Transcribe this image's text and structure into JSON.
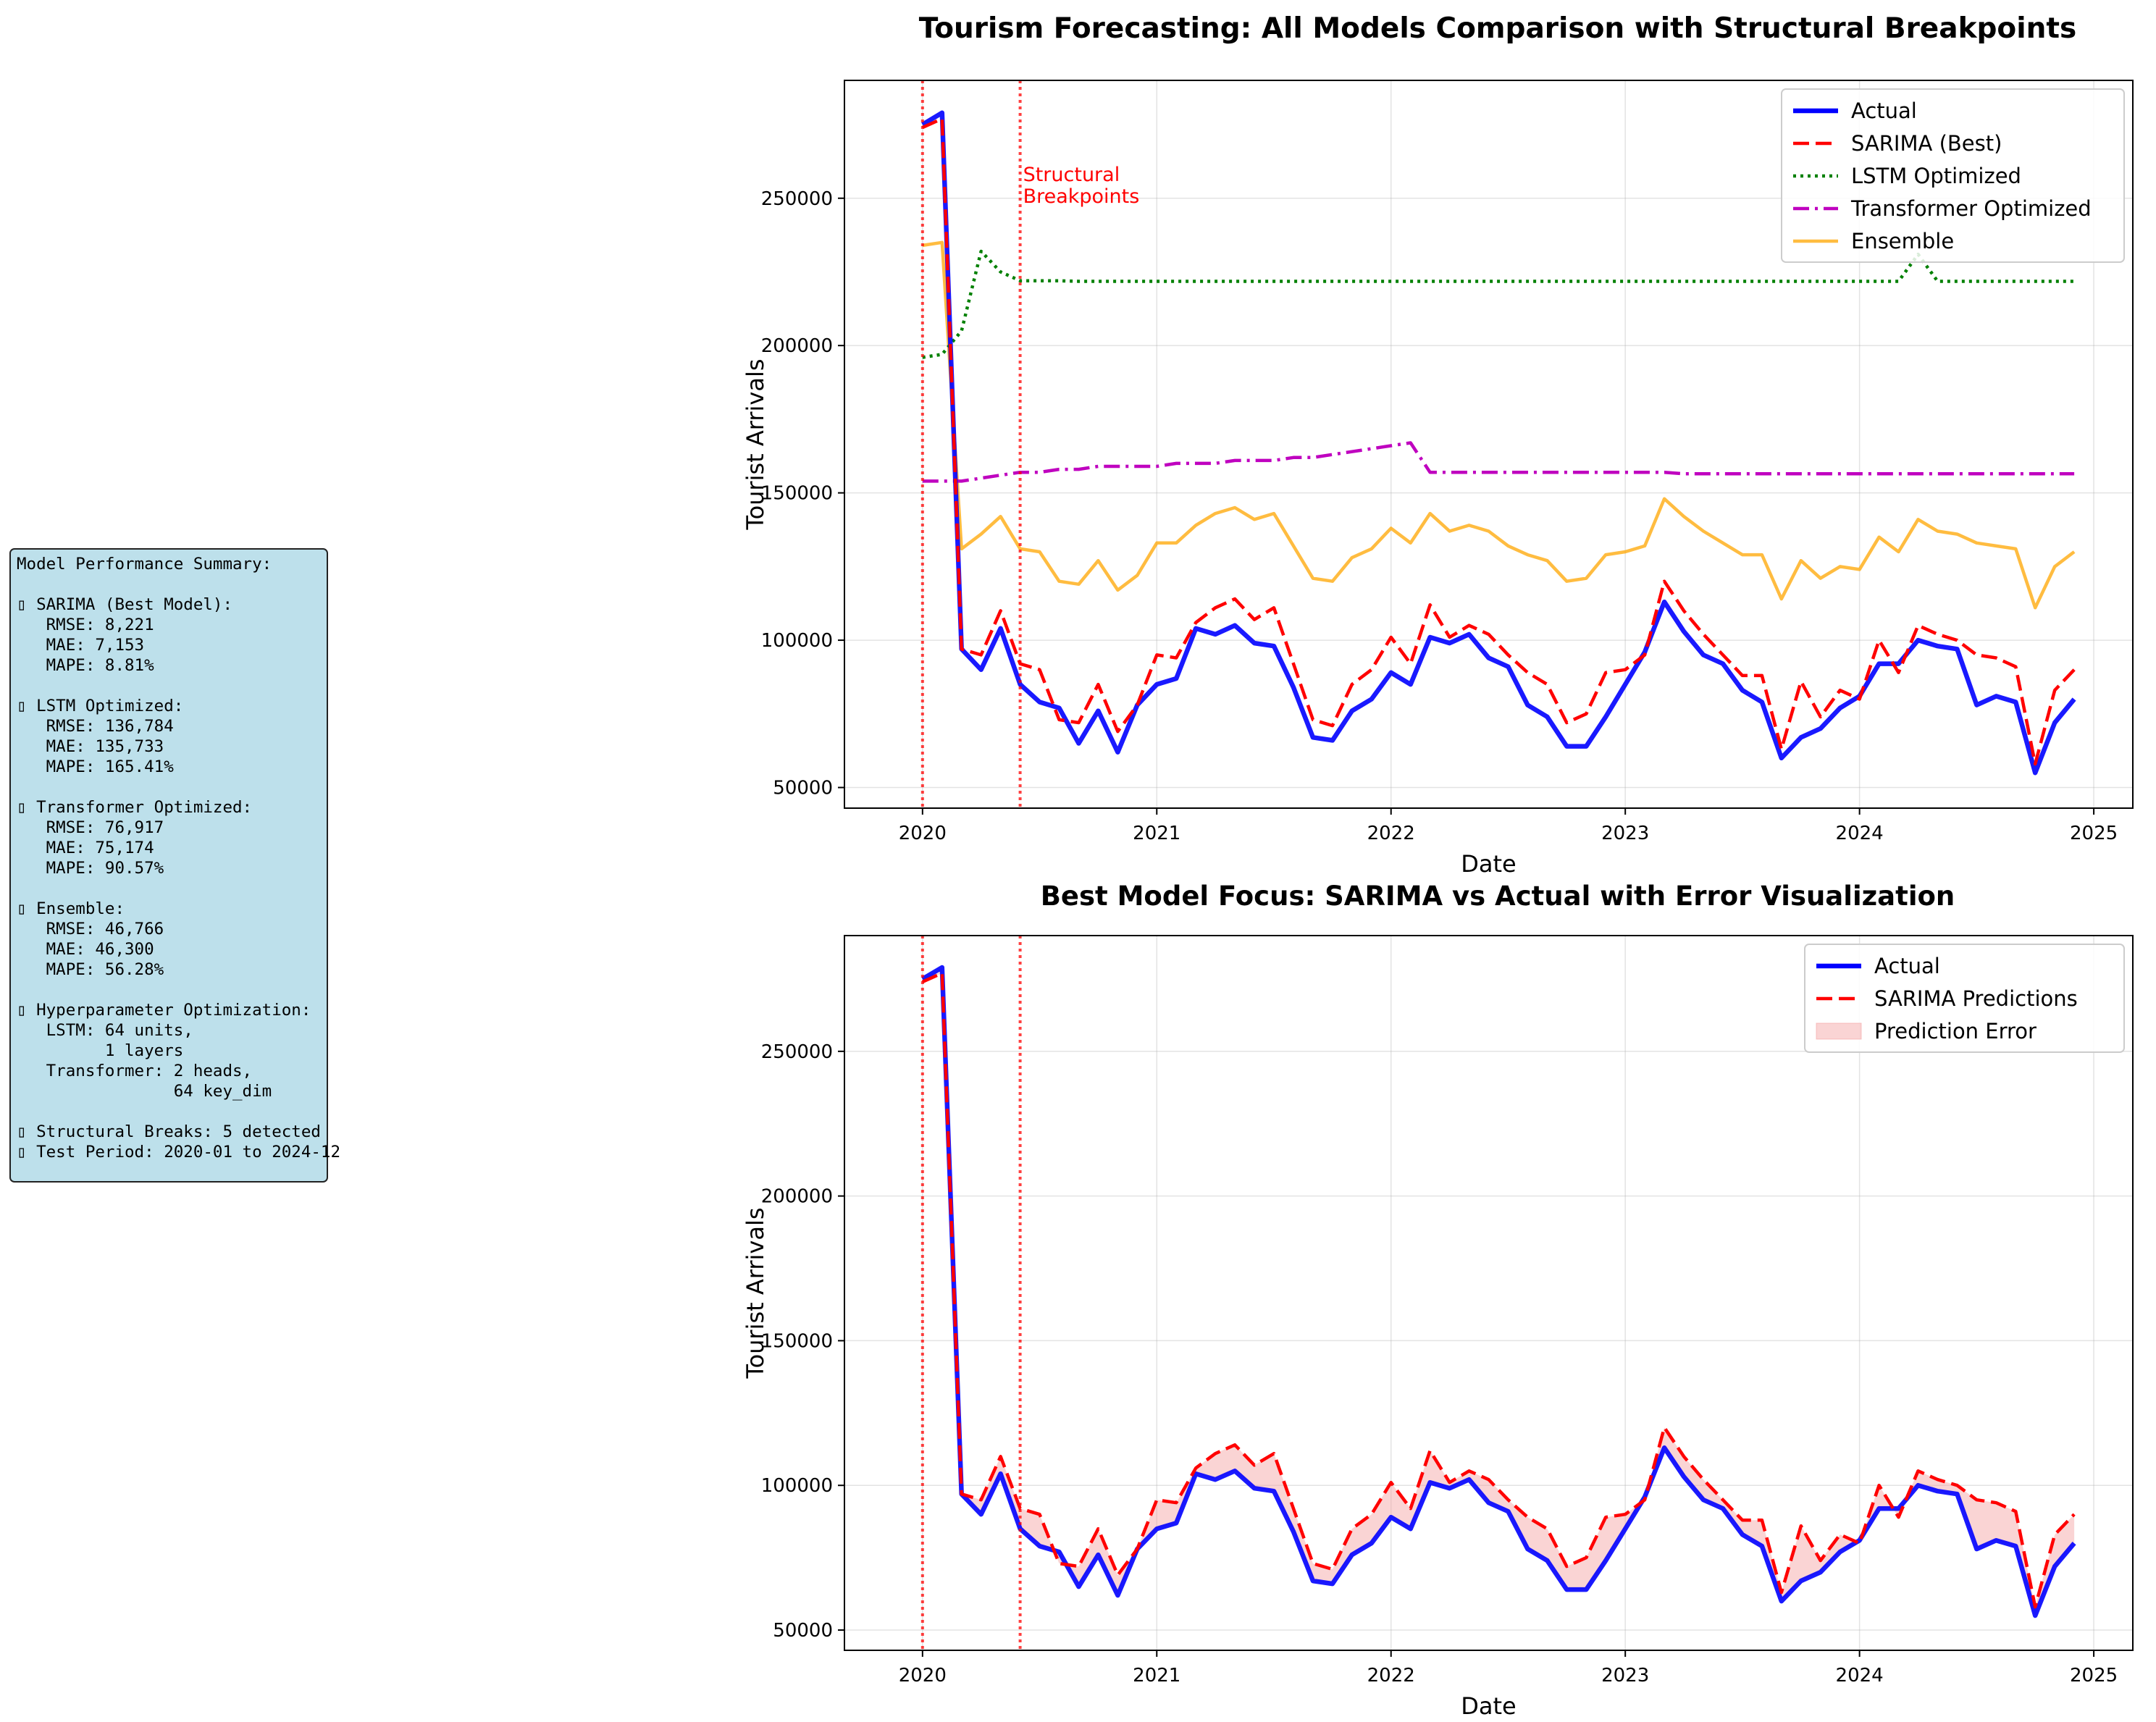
{
  "summary": {
    "title": "Model Performance Summary:",
    "blocks": [
      {
        "icon": "▯",
        "heading": "SARIMA (Best Model):",
        "lines": [
          "RMSE: 8,221",
          "MAE: 7,153",
          "MAPE: 8.81%"
        ]
      },
      {
        "icon": "▯",
        "heading": "LSTM Optimized:",
        "lines": [
          "RMSE: 136,784",
          "MAE: 135,733",
          "MAPE: 165.41%"
        ]
      },
      {
        "icon": "▯",
        "heading": "Transformer Optimized:",
        "lines": [
          "RMSE: 76,917",
          "MAE: 75,174",
          "MAPE: 90.57%"
        ]
      },
      {
        "icon": "▯",
        "heading": "Ensemble:",
        "lines": [
          "RMSE: 46,766",
          "MAE: 46,300",
          "MAPE: 56.28%"
        ]
      },
      {
        "icon": "▯",
        "heading": "Hyperparameter Optimization:",
        "lines": [
          "LSTM: 64 units,",
          "      1 layers",
          "Transformer: 2 heads,",
          "             64 key_dim"
        ]
      }
    ],
    "footer": [
      {
        "icon": "▯",
        "text": "Structural Breaks: 5 detected"
      },
      {
        "icon": "▯",
        "text": "Test Period: 2020-01 to 2024-12"
      }
    ]
  },
  "chart_data": [
    {
      "type": "line",
      "title": "Tourism Forecasting: All Models Comparison with Structural Breakpoints",
      "xlabel": "Date",
      "ylabel": "Tourist Arrivals",
      "xlim": [
        "2019-09",
        "2025-03"
      ],
      "ylim": [
        43000,
        290000
      ],
      "xticks": [
        "2020",
        "2021",
        "2022",
        "2023",
        "2024",
        "2025"
      ],
      "yticks": [
        50000,
        100000,
        150000,
        200000,
        250000
      ],
      "grid": true,
      "legend_position": "top-right",
      "breakpoints": [
        "2020-01",
        "2020-06"
      ],
      "breakpoint_label": "Structural\nBreakpoints",
      "x_start": "2020-01",
      "x_step": "month",
      "series": [
        {
          "name": "Actual",
          "color": "#0000ff",
          "style": "solid",
          "values": [
            275000,
            279000,
            97000,
            90000,
            104000,
            85000,
            79000,
            77000,
            65000,
            76000,
            62000,
            78000,
            85000,
            87000,
            104000,
            102000,
            105000,
            99000,
            98000,
            84000,
            67000,
            66000,
            76000,
            80000,
            89000,
            85000,
            101000,
            99000,
            102000,
            94000,
            91000,
            78000,
            74000,
            64000,
            64000,
            74000,
            85000,
            96000,
            113000,
            103000,
            95000,
            92000,
            83000,
            79000,
            60000,
            67000,
            70000,
            77000,
            81000,
            92000,
            92000,
            100000,
            98000,
            97000,
            78000,
            81000,
            79000,
            55000,
            72000,
            80000
          ]
        },
        {
          "name": "SARIMA (Best)",
          "color": "#ff0000",
          "style": "dashed",
          "values": [
            274000,
            277000,
            97000,
            95000,
            110000,
            92000,
            90000,
            73000,
            72000,
            85000,
            69000,
            78000,
            95000,
            94000,
            106000,
            111000,
            114000,
            107000,
            111000,
            92000,
            73000,
            71000,
            85000,
            90000,
            101000,
            92000,
            112000,
            101000,
            105000,
            102000,
            95000,
            89000,
            85000,
            72000,
            75000,
            89000,
            90000,
            95000,
            120000,
            110000,
            102000,
            95000,
            88000,
            88000,
            63000,
            86000,
            74000,
            83000,
            80000,
            100000,
            89000,
            105000,
            102000,
            100000,
            95000,
            94000,
            91000,
            58000,
            83000,
            90000
          ]
        },
        {
          "name": "LSTM Optimized",
          "color": "#008000",
          "style": "dotted",
          "values": [
            196000,
            197000,
            205000,
            232000,
            225000,
            222000,
            222000,
            222000,
            221800,
            221800,
            221800,
            221800,
            221800,
            221800,
            221800,
            221800,
            221800,
            221800,
            221800,
            221800,
            221800,
            221800,
            221800,
            221800,
            221800,
            221800,
            221800,
            221800,
            221800,
            221800,
            221800,
            221800,
            221800,
            221800,
            221800,
            221800,
            221800,
            221800,
            221800,
            221800,
            221800,
            221800,
            221800,
            221800,
            221800,
            221800,
            221800,
            221800,
            221800,
            221800,
            221800,
            231000,
            221800,
            221800,
            221800,
            221800,
            221800,
            221800,
            221800,
            221800
          ]
        },
        {
          "name": "Transformer Optimized",
          "color": "#bf00bf",
          "style": "dashdot",
          "values": [
            154000,
            154000,
            154000,
            155000,
            156000,
            157000,
            157000,
            158000,
            158000,
            159000,
            159000,
            159000,
            159000,
            160000,
            160000,
            160000,
            161000,
            161000,
            161000,
            162000,
            162000,
            163000,
            164000,
            165000,
            166000,
            167000,
            157000,
            157000,
            157000,
            157000,
            157000,
            157000,
            157000,
            157000,
            157000,
            157000,
            157000,
            157000,
            157000,
            156500,
            156500,
            156500,
            156500,
            156500,
            156500,
            156500,
            156500,
            156500,
            156500,
            156500,
            156500,
            156500,
            156500,
            156500,
            156500,
            156500,
            156500,
            156500,
            156500,
            156500
          ]
        },
        {
          "name": "Ensemble",
          "color": "#ffa500",
          "style": "solid",
          "alpha": 0.75,
          "values": [
            234000,
            235000,
            131000,
            136000,
            142000,
            131000,
            130000,
            120000,
            119000,
            127000,
            117000,
            122000,
            133000,
            133000,
            139000,
            143000,
            145000,
            141000,
            143000,
            132000,
            121000,
            120000,
            128000,
            131000,
            138000,
            133000,
            143000,
            137000,
            139000,
            137000,
            132000,
            129000,
            127000,
            120000,
            121000,
            129000,
            130000,
            132000,
            148000,
            142000,
            137000,
            133000,
            129000,
            129000,
            114000,
            127000,
            121000,
            125000,
            124000,
            135000,
            130000,
            141000,
            137000,
            136000,
            133000,
            132000,
            131000,
            111000,
            125000,
            130000
          ]
        }
      ]
    },
    {
      "type": "line",
      "title": "Best Model Focus: SARIMA vs Actual with Error Visualization",
      "xlabel": "Date",
      "ylabel": "Tourist Arrivals",
      "xlim": [
        "2019-09",
        "2025-03"
      ],
      "ylim": [
        43000,
        290000
      ],
      "xticks": [
        "2020",
        "2021",
        "2022",
        "2023",
        "2024",
        "2025"
      ],
      "yticks": [
        50000,
        100000,
        150000,
        200000,
        250000
      ],
      "grid": true,
      "legend_position": "top-right",
      "breakpoints": [
        "2020-01",
        "2020-06"
      ],
      "x_start": "2020-01",
      "x_step": "month",
      "series": [
        {
          "name": "Actual",
          "color": "#0000ff",
          "style": "solid",
          "ref": "Actual"
        },
        {
          "name": "SARIMA Predictions",
          "color": "#ff0000",
          "style": "dashed",
          "ref": "SARIMA (Best)"
        }
      ],
      "fill": {
        "name": "Prediction Error",
        "color": "#f4a0a0",
        "between": [
          "Actual",
          "SARIMA Predictions"
        ]
      }
    }
  ]
}
